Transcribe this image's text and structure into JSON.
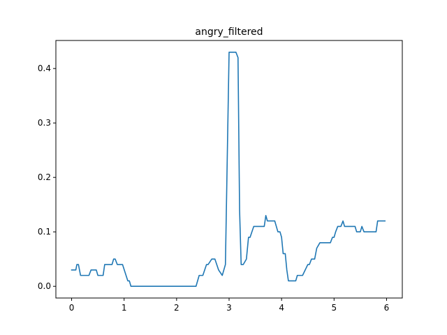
{
  "chart_data": {
    "type": "line",
    "title": "angry_filtered",
    "xlabel": "",
    "ylabel": "",
    "xlim": [
      -0.3,
      6.3
    ],
    "ylim": [
      -0.0215,
      0.4515
    ],
    "xticks": [
      0,
      1,
      2,
      3,
      4,
      5,
      6
    ],
    "xtick_labels": [
      "0",
      "1",
      "2",
      "3",
      "4",
      "5",
      "6"
    ],
    "yticks": [
      0.0,
      0.1,
      0.2,
      0.3,
      0.4
    ],
    "ytick_labels": [
      "0.0",
      "0.1",
      "0.2",
      "0.3",
      "0.4"
    ],
    "grid": false,
    "line_color": "#1f77b4",
    "series": [
      {
        "x": [
          0.0,
          0.08,
          0.1,
          0.13,
          0.17,
          0.2,
          0.33,
          0.37,
          0.47,
          0.5,
          0.6,
          0.63,
          0.67,
          0.77,
          0.8,
          0.83,
          0.87,
          0.97,
          1.07,
          1.1,
          1.13,
          1.17,
          1.5,
          2.0,
          2.37,
          2.43,
          2.5,
          2.57,
          2.6,
          2.67,
          2.73,
          2.8,
          2.87,
          2.93,
          3.0,
          3.03,
          3.07,
          3.13,
          3.17,
          3.2,
          3.23,
          3.27,
          3.33,
          3.37,
          3.4,
          3.47,
          3.53,
          3.67,
          3.7,
          3.73,
          3.87,
          3.93,
          3.97,
          4.0,
          4.03,
          4.07,
          4.1,
          4.13,
          4.17,
          4.27,
          4.3,
          4.33,
          4.4,
          4.5,
          4.53,
          4.57,
          4.63,
          4.67,
          4.73,
          4.77,
          4.8,
          4.93,
          4.97,
          5.0,
          5.03,
          5.07,
          5.13,
          5.17,
          5.2,
          5.23,
          5.4,
          5.43,
          5.5,
          5.53,
          5.57,
          5.6,
          5.8,
          5.83,
          5.97
        ],
        "y": [
          0.03,
          0.03,
          0.04,
          0.04,
          0.02,
          0.02,
          0.02,
          0.03,
          0.03,
          0.02,
          0.02,
          0.04,
          0.04,
          0.04,
          0.05,
          0.05,
          0.04,
          0.04,
          0.01,
          0.01,
          0.0,
          0.0,
          0.0,
          0.0,
          0.0,
          0.02,
          0.02,
          0.04,
          0.04,
          0.05,
          0.05,
          0.03,
          0.02,
          0.04,
          0.43,
          0.43,
          0.43,
          0.43,
          0.42,
          0.14,
          0.04,
          0.04,
          0.05,
          0.09,
          0.09,
          0.11,
          0.11,
          0.11,
          0.13,
          0.12,
          0.12,
          0.1,
          0.1,
          0.09,
          0.06,
          0.06,
          0.03,
          0.01,
          0.01,
          0.01,
          0.02,
          0.02,
          0.02,
          0.04,
          0.04,
          0.05,
          0.05,
          0.07,
          0.08,
          0.08,
          0.08,
          0.08,
          0.09,
          0.09,
          0.1,
          0.11,
          0.11,
          0.12,
          0.11,
          0.11,
          0.11,
          0.1,
          0.1,
          0.11,
          0.1,
          0.1,
          0.1,
          0.12,
          0.12
        ]
      }
    ]
  }
}
